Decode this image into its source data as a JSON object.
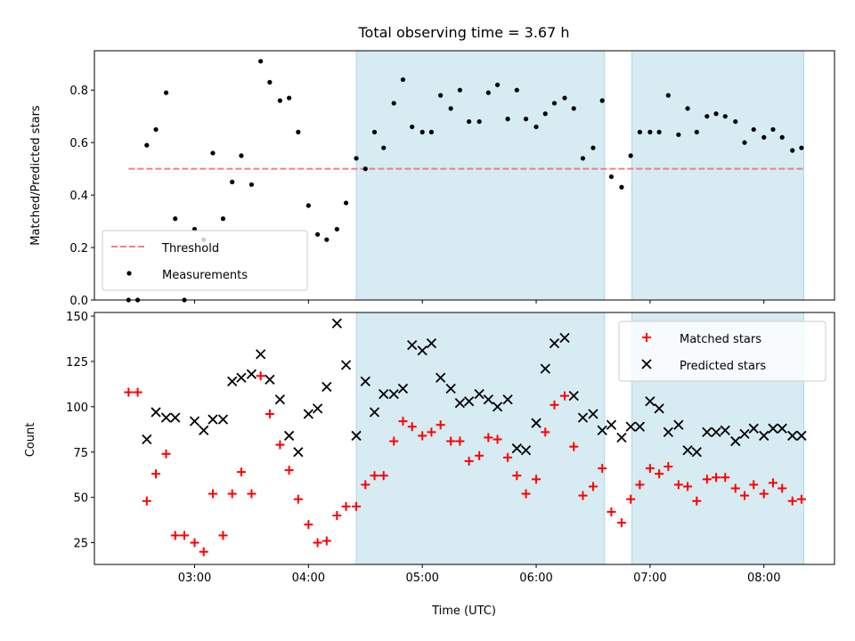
{
  "figure": {
    "title": "Total observing time = 3.67 h"
  },
  "colors": {
    "shade": "#ADD8E6",
    "threshold": "#F08080",
    "matched": "#FF0000",
    "predicted": "#000000",
    "measurement": "#000000"
  },
  "chart_data": [
    {
      "type": "scatter",
      "ylabel": "Matched/Predicted stars",
      "xlim": [
        2.12,
        8.62
      ],
      "ylim": [
        0,
        0.95
      ],
      "yticks": [
        0,
        0.2,
        0.4,
        0.6,
        0.8
      ],
      "ytick_labels": [
        "0.0",
        "0.2",
        "0.4",
        "0.6",
        "0.8"
      ],
      "shaded_regions": [
        [
          4.42,
          6.6
        ],
        [
          6.84,
          8.35
        ]
      ],
      "legend_position": "lower-left",
      "threshold": {
        "name": "Threshold",
        "y": 0.5,
        "x": [
          2.42,
          8.35
        ],
        "style": "dashed"
      },
      "series": [
        {
          "name": "Measurements",
          "x": [
            2.42,
            2.5,
            2.58,
            2.66,
            2.75,
            2.83,
            2.91,
            3.0,
            3.08,
            3.16,
            3.25,
            3.33,
            3.41,
            3.5,
            3.58,
            3.66,
            3.75,
            3.83,
            3.91,
            4.0,
            4.08,
            4.16,
            4.25,
            4.33,
            4.42,
            4.5,
            4.58,
            4.66,
            4.75,
            4.83,
            4.91,
            5.0,
            5.08,
            5.16,
            5.25,
            5.33,
            5.41,
            5.5,
            5.58,
            5.66,
            5.75,
            5.83,
            5.91,
            6.0,
            6.08,
            6.16,
            6.25,
            6.33,
            6.41,
            6.5,
            6.58,
            6.66,
            6.75,
            6.83,
            6.91,
            7.0,
            7.08,
            7.16,
            7.25,
            7.33,
            7.41,
            7.5,
            7.58,
            7.66,
            7.75,
            7.83,
            7.91,
            8.0,
            8.08,
            8.16,
            8.25,
            8.33
          ],
          "y": [
            0,
            0,
            0.59,
            0.65,
            0.79,
            0.31,
            0,
            0.27,
            0.23,
            0.56,
            0.31,
            0.45,
            0.55,
            0.44,
            0.91,
            0.83,
            0.76,
            0.77,
            0.64,
            0.36,
            0.25,
            0.23,
            0.27,
            0.37,
            0.54,
            0.5,
            0.64,
            0.58,
            0.75,
            0.84,
            0.66,
            0.64,
            0.64,
            0.78,
            0.73,
            0.8,
            0.68,
            0.68,
            0.79,
            0.82,
            0.69,
            0.8,
            0.69,
            0.66,
            0.71,
            0.75,
            0.77,
            0.73,
            0.54,
            0.58,
            0.76,
            0.47,
            0.43,
            0.55,
            0.64,
            0.64,
            0.64,
            0.78,
            0.63,
            0.73,
            0.64,
            0.7,
            0.71,
            0.7,
            0.68,
            0.6,
            0.65,
            0.62,
            0.65,
            0.62,
            0.57,
            0.58
          ]
        }
      ]
    },
    {
      "type": "scatter",
      "xlabel": "Time (UTC)",
      "ylabel": "Count",
      "xlim": [
        2.12,
        8.62
      ],
      "ylim": [
        13,
        152
      ],
      "xticks": [
        3,
        4,
        5,
        6,
        7,
        8
      ],
      "xtick_labels": [
        "03:00",
        "04:00",
        "05:00",
        "06:00",
        "07:00",
        "08:00"
      ],
      "yticks": [
        25,
        50,
        75,
        100,
        125,
        150
      ],
      "ytick_labels": [
        "25",
        "50",
        "75",
        "100",
        "125",
        "150"
      ],
      "shaded_regions": [
        [
          4.42,
          6.6
        ],
        [
          6.84,
          8.35
        ]
      ],
      "legend_position": "upper-right",
      "series": [
        {
          "name": "Matched stars",
          "marker": "plus",
          "x": [
            2.42,
            2.5,
            2.58,
            2.66,
            2.75,
            2.83,
            2.91,
            3.0,
            3.08,
            3.16,
            3.25,
            3.33,
            3.41,
            3.5,
            3.58,
            3.66,
            3.75,
            3.83,
            3.91,
            4.0,
            4.08,
            4.16,
            4.25,
            4.33,
            4.42,
            4.5,
            4.58,
            4.66,
            4.75,
            4.83,
            4.91,
            5.0,
            5.08,
            5.16,
            5.25,
            5.33,
            5.41,
            5.5,
            5.58,
            5.66,
            5.75,
            5.83,
            5.91,
            6.0,
            6.08,
            6.16,
            6.25,
            6.33,
            6.41,
            6.5,
            6.58,
            6.66,
            6.75,
            6.83,
            6.91,
            7.0,
            7.08,
            7.16,
            7.25,
            7.33,
            7.41,
            7.5,
            7.58,
            7.66,
            7.75,
            7.83,
            7.91,
            8.0,
            8.08,
            8.16,
            8.25,
            8.33
          ],
          "y": [
            108,
            108,
            48,
            63,
            74,
            29,
            29,
            25,
            20,
            52,
            29,
            52,
            64,
            52,
            117,
            96,
            79,
            65,
            49,
            35,
            25,
            26,
            40,
            45,
            45,
            57,
            62,
            62,
            81,
            92,
            89,
            84,
            86,
            90,
            81,
            81,
            70,
            73,
            83,
            82,
            72,
            62,
            52,
            60,
            86,
            101,
            106,
            78,
            51,
            56,
            66,
            42,
            36,
            49,
            57,
            66,
            63,
            67,
            57,
            56,
            48,
            60,
            61,
            61,
            55,
            51,
            57,
            52,
            58,
            55,
            48,
            49
          ]
        },
        {
          "name": "Predicted stars",
          "marker": "x",
          "x": [
            2.42,
            2.5,
            2.58,
            2.66,
            2.75,
            2.83,
            2.91,
            3.0,
            3.08,
            3.16,
            3.25,
            3.33,
            3.41,
            3.5,
            3.58,
            3.66,
            3.75,
            3.83,
            3.91,
            4.0,
            4.08,
            4.16,
            4.25,
            4.33,
            4.42,
            4.5,
            4.58,
            4.66,
            4.75,
            4.83,
            4.91,
            5.0,
            5.08,
            5.16,
            5.25,
            5.33,
            5.41,
            5.5,
            5.58,
            5.66,
            5.75,
            5.83,
            5.91,
            6.0,
            6.08,
            6.16,
            6.25,
            6.33,
            6.41,
            6.5,
            6.58,
            6.66,
            6.75,
            6.83,
            6.91,
            7.0,
            7.08,
            7.16,
            7.25,
            7.33,
            7.41,
            7.5,
            7.58,
            7.66,
            7.75,
            7.83,
            7.91,
            8.0,
            8.08,
            8.16,
            8.25,
            8.33
          ],
          "y": [
            null,
            null,
            82,
            97,
            94,
            94,
            null,
            92,
            87,
            93,
            93,
            114,
            116,
            118,
            129,
            115,
            104,
            84,
            75,
            96,
            99,
            111,
            146,
            123,
            84,
            114,
            97,
            107,
            107,
            110,
            134,
            131,
            135,
            116,
            110,
            102,
            103,
            107,
            104,
            100,
            104,
            77,
            76,
            91,
            121,
            135,
            138,
            106,
            94,
            96,
            87,
            90,
            83,
            89,
            89,
            103,
            99,
            86,
            90,
            76,
            75,
            86,
            86,
            87,
            81,
            85,
            88,
            84,
            88,
            88,
            84,
            84
          ]
        }
      ]
    }
  ]
}
